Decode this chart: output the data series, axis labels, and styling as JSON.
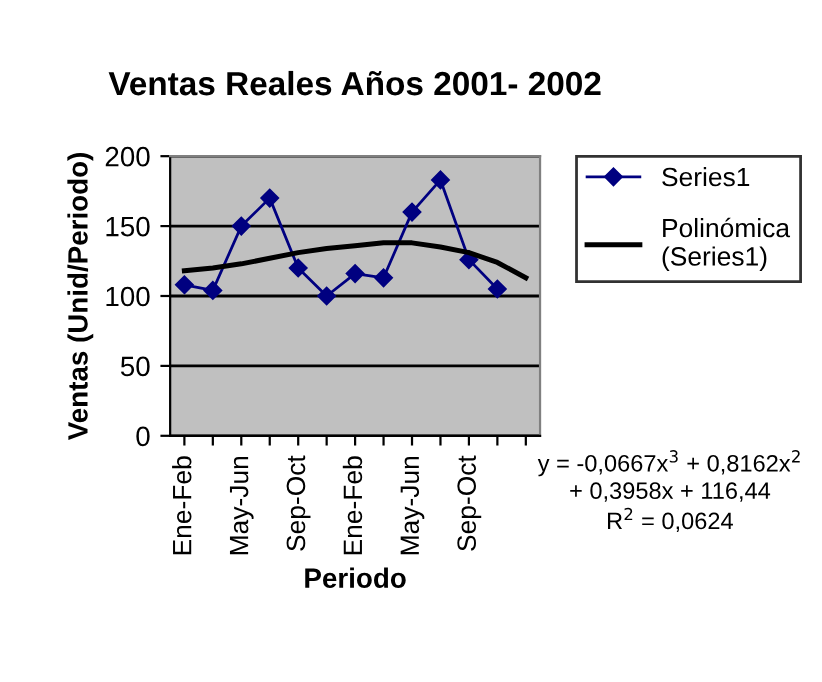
{
  "chart_data": {
    "type": "line",
    "title": "Ventas Reales Años 2001- 2002",
    "xlabel": "Periodo",
    "ylabel": "Ventas (Unid/Periodo)",
    "categories": [
      "Ene-Feb",
      null,
      "May-Jun",
      null,
      "Sep-Oct",
      null,
      "Ene-Feb",
      null,
      "May-Jun",
      null,
      "Sep-Oct",
      null,
      null
    ],
    "series": [
      {
        "name": "Series1",
        "color": "#000080",
        "marker": "diamond",
        "values": [
          108,
          104,
          150,
          170,
          120,
          100,
          116,
          113,
          160,
          183,
          126,
          105,
          null
        ]
      },
      {
        "name": "Polinómica\n(Series1)",
        "color": "#000000",
        "marker": "none",
        "values": [
          118,
          120,
          123,
          127,
          131,
          134,
          136,
          138,
          138,
          135,
          131,
          124,
          113
        ]
      }
    ],
    "ylim": [
      0,
      200
    ],
    "yticks": [
      0,
      50,
      100,
      150,
      200
    ],
    "grid": "y",
    "legend": "top right",
    "annotations": [
      "y = -0,0667x$^{3}$ + 0,8162x$^{2}$\n+ 0,3958x + 116,44\nR$^{2}$ = 0,0624"
    ]
  }
}
